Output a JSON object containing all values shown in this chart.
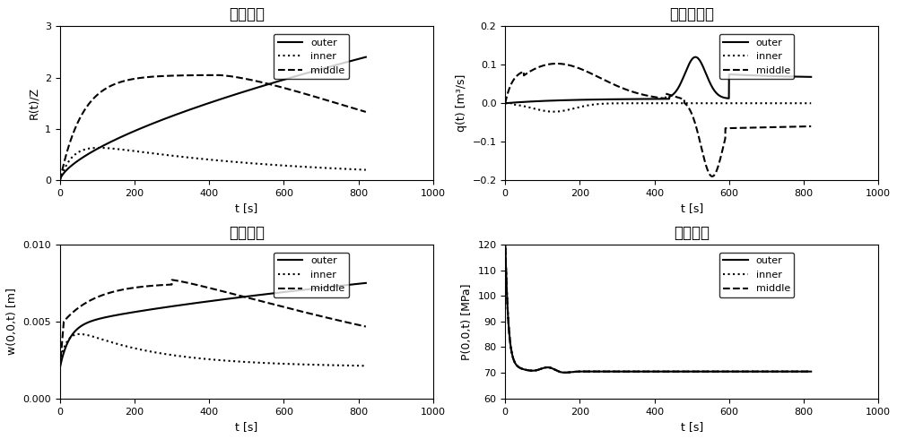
{
  "title_tl": "裂缝半径",
  "title_tr": "入口流入量",
  "title_bl": "裂缝宽度",
  "title_br": "井筒压力",
  "ylabel_tl": "R(t)/Z",
  "ylabel_tr": "q(t) [m³/s]",
  "ylabel_bl": "w(0,0,t) [m]",
  "ylabel_br": "P(0,0,t) [MPa]",
  "xlabel": "t [s]",
  "xlim": [
    0,
    1000
  ],
  "legend_labels": [
    "outer",
    "inner",
    "middle"
  ],
  "line_styles": [
    "-",
    ":",
    "--"
  ],
  "line_color": "black",
  "line_width": 1.5,
  "tl_ylim": [
    0,
    3
  ],
  "tr_ylim": [
    -0.2,
    0.2
  ],
  "bl_ylim": [
    0,
    0.01
  ],
  "br_ylim": [
    60,
    120
  ]
}
